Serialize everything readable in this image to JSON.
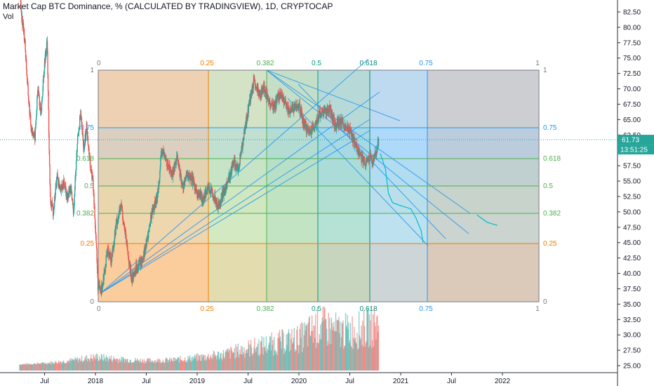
{
  "header": {
    "title": "Market Cap BTC Dominance, % (CALCULATED BY TRADINGVIEW), 1D, CRYPTOCAP",
    "volume_label": "Vol"
  },
  "price_axis": {
    "ticks": [
      "82.50",
      "80.00",
      "77.50",
      "75.00",
      "72.50",
      "70.00",
      "67.50",
      "65.00",
      "62.50",
      "60.00",
      "57.50",
      "55.00",
      "52.50",
      "50.00",
      "47.50",
      "45.00",
      "42.50",
      "40.00",
      "37.50",
      "35.00",
      "32.50",
      "30.00",
      "27.50",
      "25.00"
    ],
    "last_value": "61.73",
    "countdown": "13:51:25",
    "last_value_color": "#26a69a",
    "countdown_color": "#26a69a"
  },
  "time_axis": {
    "ticks": [
      "Jul",
      "2018",
      "Jul",
      "2019",
      "Jul",
      "2020",
      "Jul",
      "2021",
      "Jul",
      "2022"
    ]
  },
  "fib_time_zones": {
    "top_labels": [
      "0",
      "0.25",
      "0.382",
      "0.5",
      "0.618",
      "0.75",
      "1"
    ],
    "bottom_labels": [
      "0",
      "0.25",
      "0.382",
      "0.5",
      "0.618",
      "0.75",
      "1"
    ],
    "colors": [
      "#787b86",
      "#f57c00",
      "#4caf50",
      "#089981",
      "#00897b",
      "#2196f3",
      "#787b86"
    ]
  },
  "fib_retracement": {
    "left_labels": [
      "1",
      "0.75",
      "0.618",
      "0.5",
      "0.382",
      "0.25",
      "0"
    ],
    "right_labels": [
      "1",
      "0.75",
      "0.618",
      "0.5",
      "0.382",
      "0.25",
      "0"
    ],
    "colors": [
      "#787b86",
      "#2196f3",
      "#4caf50",
      "#4caf50",
      "#4caf50",
      "#f57c00",
      "#787b86"
    ]
  },
  "chart_data": {
    "type": "candlestick",
    "title": "Market Cap BTC Dominance, % (CALCULATED BY TRADINGVIEW), 1D, CRYPTOCAP",
    "ylim": [
      24,
      84
    ],
    "price_path": [
      [
        2017.25,
        86
      ],
      [
        2017.27,
        82
      ],
      [
        2017.3,
        78
      ],
      [
        2017.33,
        70
      ],
      [
        2017.36,
        64
      ],
      [
        2017.4,
        62
      ],
      [
        2017.43,
        70
      ],
      [
        2017.46,
        66
      ],
      [
        2017.49,
        73
      ],
      [
        2017.52,
        78
      ],
      [
        2017.55,
        52
      ],
      [
        2017.58,
        50
      ],
      [
        2017.62,
        56
      ],
      [
        2017.65,
        53
      ],
      [
        2017.68,
        55
      ],
      [
        2017.72,
        52
      ],
      [
        2017.75,
        54
      ],
      [
        2017.78,
        50
      ],
      [
        2017.82,
        62
      ],
      [
        2017.85,
        66
      ],
      [
        2017.88,
        60
      ],
      [
        2017.91,
        64
      ],
      [
        2017.94,
        58
      ],
      [
        2017.97,
        55
      ],
      [
        2018.0,
        46
      ],
      [
        2018.02,
        38
      ],
      [
        2018.05,
        37
      ],
      [
        2018.08,
        40
      ],
      [
        2018.12,
        44
      ],
      [
        2018.15,
        42
      ],
      [
        2018.2,
        48
      ],
      [
        2018.25,
        51
      ],
      [
        2018.3,
        45
      ],
      [
        2018.35,
        39
      ],
      [
        2018.4,
        41
      ],
      [
        2018.45,
        42
      ],
      [
        2018.5,
        45
      ],
      [
        2018.55,
        50
      ],
      [
        2018.6,
        52
      ],
      [
        2018.65,
        60
      ],
      [
        2018.7,
        58
      ],
      [
        2018.75,
        56
      ],
      [
        2018.8,
        59
      ],
      [
        2018.85,
        54
      ],
      [
        2018.9,
        56
      ],
      [
        2018.95,
        55
      ],
      [
        2019.0,
        53
      ],
      [
        2019.05,
        52
      ],
      [
        2019.1,
        54
      ],
      [
        2019.15,
        53
      ],
      [
        2019.2,
        51
      ],
      [
        2019.25,
        53
      ],
      [
        2019.3,
        55
      ],
      [
        2019.35,
        58
      ],
      [
        2019.4,
        57
      ],
      [
        2019.45,
        62
      ],
      [
        2019.5,
        67
      ],
      [
        2019.55,
        71
      ],
      [
        2019.6,
        69
      ],
      [
        2019.65,
        70
      ],
      [
        2019.7,
        68
      ],
      [
        2019.75,
        67
      ],
      [
        2019.8,
        69
      ],
      [
        2019.85,
        68
      ],
      [
        2019.9,
        66
      ],
      [
        2019.95,
        67
      ],
      [
        2020.0,
        67
      ],
      [
        2020.05,
        64
      ],
      [
        2020.1,
        63
      ],
      [
        2020.15,
        64
      ],
      [
        2020.2,
        66
      ],
      [
        2020.25,
        66
      ],
      [
        2020.3,
        67
      ],
      [
        2020.35,
        64
      ],
      [
        2020.4,
        65
      ],
      [
        2020.45,
        64
      ],
      [
        2020.5,
        63
      ],
      [
        2020.55,
        61
      ],
      [
        2020.6,
        59
      ],
      [
        2020.65,
        58
      ],
      [
        2020.7,
        59
      ],
      [
        2020.72,
        58
      ],
      [
        2020.76,
        60
      ],
      [
        2020.78,
        61.73
      ]
    ],
    "volume_path": [
      [
        2017.25,
        25.2
      ],
      [
        2017.5,
        25.4
      ],
      [
        2017.75,
        25.8
      ],
      [
        2018.0,
        26.4
      ],
      [
        2018.25,
        26.0
      ],
      [
        2018.5,
        25.8
      ],
      [
        2018.75,
        25.9
      ],
      [
        2019.0,
        26.3
      ],
      [
        2019.25,
        26.8
      ],
      [
        2019.5,
        27.8
      ],
      [
        2019.75,
        28.6
      ],
      [
        2020.0,
        29.4
      ],
      [
        2020.2,
        31.5
      ],
      [
        2020.4,
        30.5
      ],
      [
        2020.6,
        30.8
      ],
      [
        2020.78,
        31.6
      ]
    ],
    "projection_path": [
      [
        2020.8,
        59.5
      ],
      [
        2020.85,
        57
      ],
      [
        2020.88,
        53
      ],
      [
        2020.92,
        51.5
      ],
      [
        2021.0,
        51
      ],
      [
        2021.1,
        50.5
      ],
      [
        2021.15,
        49
      ],
      [
        2021.2,
        47
      ],
      [
        2021.22,
        45
      ]
    ],
    "projection_tail": [
      [
        2021.75,
        49.5
      ],
      [
        2021.85,
        48.3
      ],
      [
        2021.95,
        47.8
      ]
    ]
  }
}
